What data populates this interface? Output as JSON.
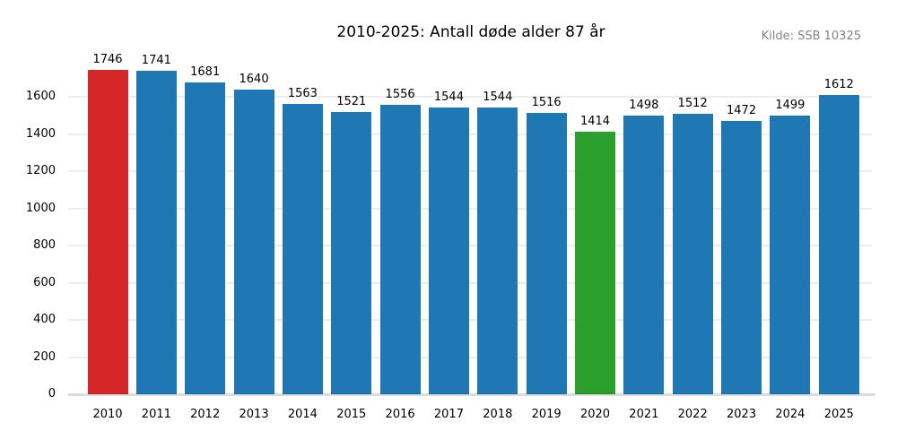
{
  "figure": {
    "title": "2010-2025: Antall døde alder 87 år",
    "source_note": "Kilde: SSB 10325"
  },
  "chart_data": {
    "type": "bar",
    "title": "2010-2025: Antall døde alder 87 år",
    "source_note": "Kilde: SSB 10325",
    "categories": [
      "2010",
      "2011",
      "2012",
      "2013",
      "2014",
      "2015",
      "2016",
      "2017",
      "2018",
      "2019",
      "2020",
      "2021",
      "2022",
      "2023",
      "2024",
      "2025"
    ],
    "values": [
      1746,
      1741,
      1681,
      1640,
      1563,
      1521,
      1556,
      1544,
      1544,
      1516,
      1414,
      1498,
      1512,
      1472,
      1499,
      1612
    ],
    "bar_colors": [
      "#d62728",
      "#1f77b4",
      "#1f77b4",
      "#1f77b4",
      "#1f77b4",
      "#1f77b4",
      "#1f77b4",
      "#1f77b4",
      "#1f77b4",
      "#1f77b4",
      "#2ca02c",
      "#1f77b4",
      "#1f77b4",
      "#1f77b4",
      "#1f77b4",
      "#1f77b4"
    ],
    "default_bar_color": "#1f77b4",
    "highlighted_bars": [
      {
        "category": "2010",
        "color": "#d62728"
      },
      {
        "category": "2020",
        "color": "#2ca02c"
      }
    ],
    "value_labels_shown": true,
    "xlabel": "",
    "ylabel": "",
    "yticks": [
      0,
      200,
      400,
      600,
      800,
      1000,
      1200,
      1400,
      1600
    ],
    "ylim": [
      0,
      1800
    ],
    "grid": "horizontal",
    "legend": "none",
    "colors": {
      "grid": "#ededed",
      "baseline": "rgba(0,0,0,0.14)",
      "title_text": "#000000",
      "tick_text": "#000000",
      "source_text": "#848484",
      "background": "#ffffff"
    }
  }
}
